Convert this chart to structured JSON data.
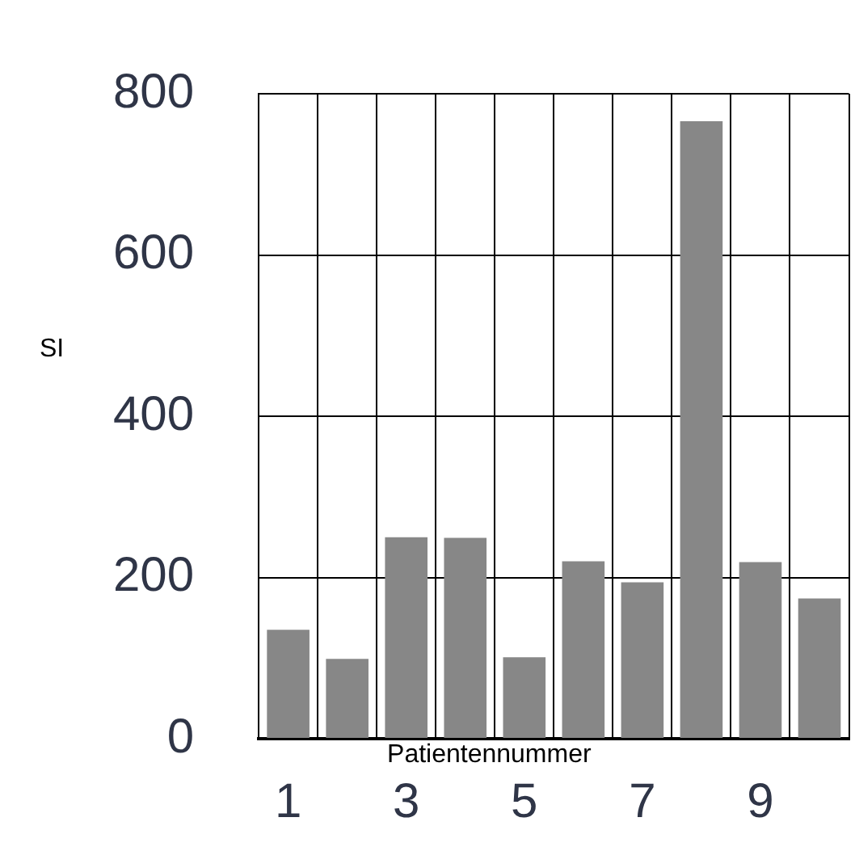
{
  "chart_data": {
    "type": "bar",
    "xlabel": "Patientennummer",
    "ylabel": "SI",
    "categories": [
      "1",
      null,
      "3",
      null,
      "5",
      null,
      "7",
      null,
      "9",
      null
    ],
    "values": [
      135,
      99,
      250,
      249,
      101,
      220,
      194,
      766,
      219,
      174
    ],
    "color": "#878787",
    "ylim": [
      0,
      800
    ],
    "yticks": [
      0,
      200,
      400,
      600,
      800
    ],
    "grid": true
  }
}
